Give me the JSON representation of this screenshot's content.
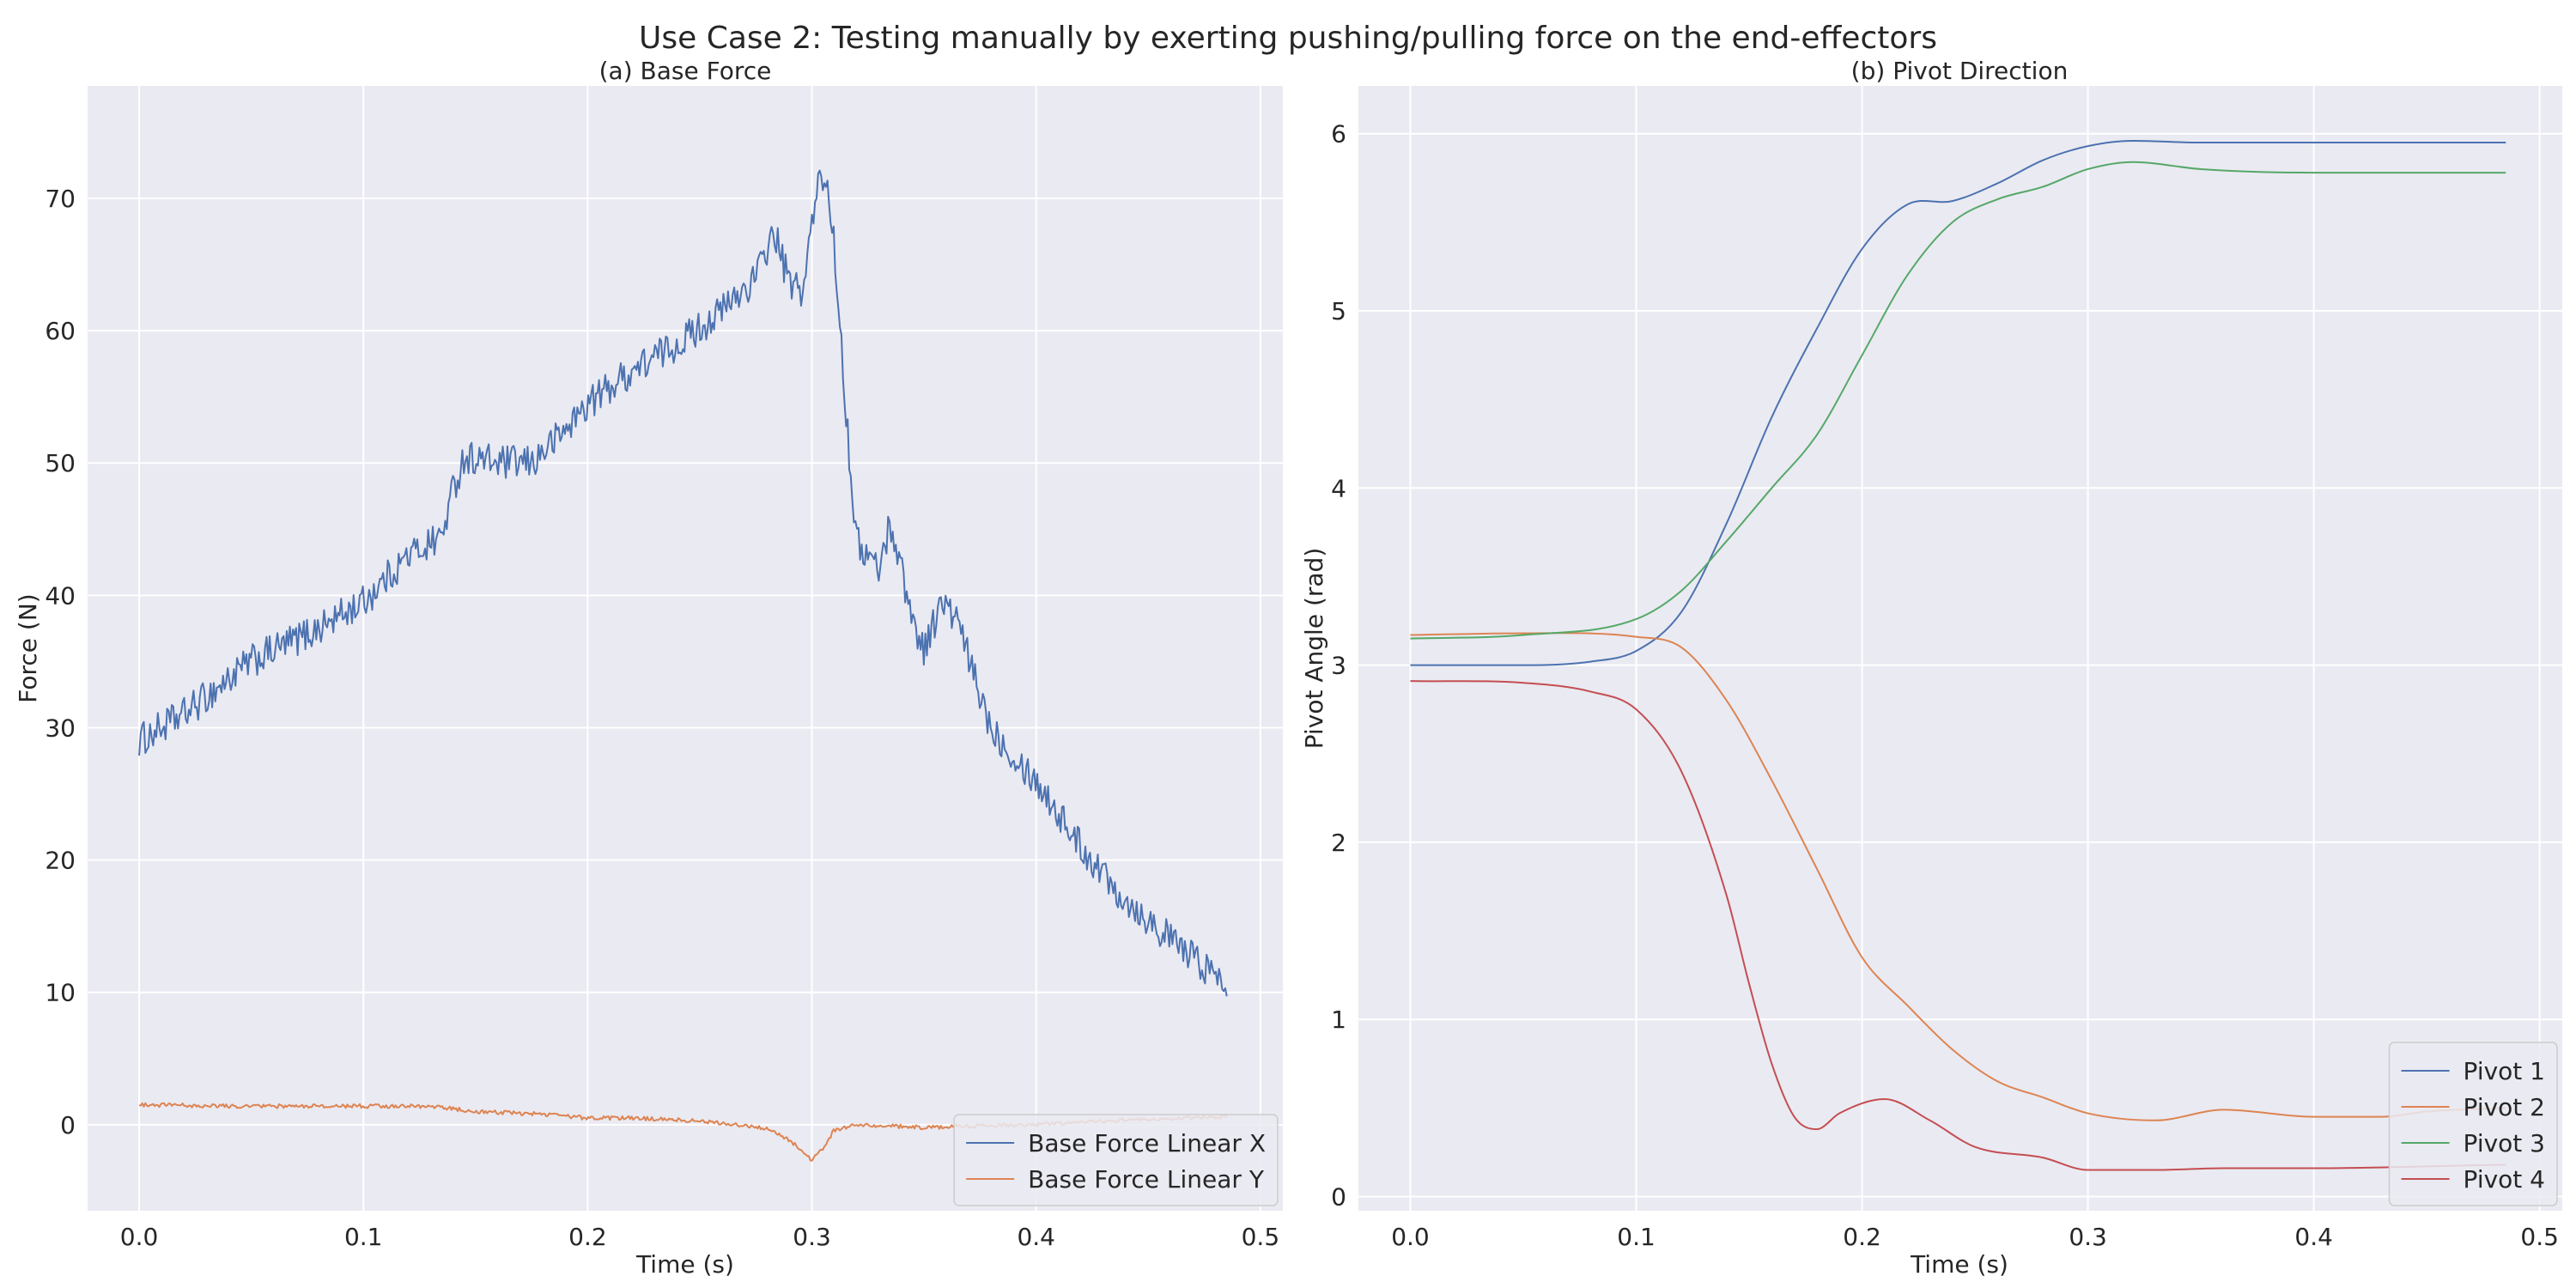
{
  "figure": {
    "suptitle": "Use Case 2: Testing manually by exerting pushing/pulling force on the end-effectors",
    "background": "#ffffff",
    "axes_facecolor": "#eaeaf2",
    "grid_color": "#ffffff"
  },
  "chart_data": [
    {
      "type": "line",
      "title": "(a) Base Force",
      "xlabel": "Time (s)",
      "ylabel": "Force (N)",
      "xlim": [
        -0.023,
        0.51
      ],
      "ylim": [
        -6.5,
        78.5
      ],
      "xticks": [
        0.0,
        0.1,
        0.2,
        0.3,
        0.4,
        0.5
      ],
      "xtick_labels": [
        "0.0",
        "0.1",
        "0.2",
        "0.3",
        "0.4",
        "0.5"
      ],
      "yticks": [
        0,
        10,
        20,
        30,
        40,
        50,
        60,
        70
      ],
      "ytick_labels": [
        "0",
        "10",
        "20",
        "30",
        "40",
        "50",
        "60",
        "70"
      ],
      "grid": true,
      "legend_position": "bottom-right",
      "series": [
        {
          "name": "Base Force Linear X",
          "color": "#4c72b0",
          "noise": 1.3,
          "x": [
            0.0,
            0.02,
            0.05,
            0.08,
            0.1,
            0.12,
            0.135,
            0.14,
            0.145,
            0.16,
            0.175,
            0.19,
            0.2,
            0.22,
            0.24,
            0.26,
            0.275,
            0.283,
            0.29,
            0.296,
            0.3,
            0.304,
            0.308,
            0.312,
            0.316,
            0.32,
            0.33,
            0.335,
            0.34,
            0.345,
            0.35,
            0.358,
            0.365,
            0.372,
            0.38,
            0.39,
            0.4,
            0.42,
            0.44,
            0.46,
            0.475,
            0.485
          ],
          "y": [
            29,
            31,
            35,
            37.5,
            39.5,
            43,
            44.5,
            48,
            50.5,
            50,
            50,
            52.5,
            54.5,
            57,
            59,
            61.5,
            64,
            67.5,
            63.5,
            63,
            68,
            72,
            70,
            62,
            52,
            44,
            42,
            45.5,
            42,
            38,
            36,
            39.5,
            38,
            34,
            30,
            28,
            26,
            21,
            17,
            14,
            12,
            10.5
          ]
        },
        {
          "name": "Base Force Linear Y",
          "color": "#dd8452",
          "noise": 0.15,
          "x": [
            0.0,
            0.05,
            0.1,
            0.13,
            0.15,
            0.18,
            0.2,
            0.22,
            0.25,
            0.28,
            0.29,
            0.295,
            0.3,
            0.305,
            0.31,
            0.32,
            0.35,
            0.4,
            0.45,
            0.485
          ],
          "y": [
            1.5,
            1.4,
            1.4,
            1.4,
            1.0,
            0.8,
            0.5,
            0.5,
            0.3,
            -0.3,
            -1.2,
            -1.8,
            -2.7,
            -1.8,
            -0.4,
            0.0,
            -0.2,
            0.0,
            0.4,
            0.6
          ]
        }
      ]
    },
    {
      "type": "line",
      "title": "(b) Pivot Direction",
      "xlabel": "Time (s)",
      "ylabel": "Pivot Angle (rad)",
      "xlim": [
        -0.023,
        0.51
      ],
      "ylim": [
        -0.08,
        6.27
      ],
      "xticks": [
        0.0,
        0.1,
        0.2,
        0.3,
        0.4,
        0.5
      ],
      "xtick_labels": [
        "0.0",
        "0.1",
        "0.2",
        "0.3",
        "0.4",
        "0.5"
      ],
      "yticks": [
        0,
        1,
        2,
        3,
        4,
        5,
        6
      ],
      "ytick_labels": [
        "0",
        "1",
        "2",
        "3",
        "4",
        "5",
        "6"
      ],
      "grid": true,
      "legend_position": "bottom-right",
      "series": [
        {
          "name": "Pivot 1",
          "color": "#4c72b0",
          "x": [
            0.0,
            0.05,
            0.08,
            0.1,
            0.12,
            0.14,
            0.16,
            0.18,
            0.2,
            0.22,
            0.24,
            0.26,
            0.28,
            0.3,
            0.32,
            0.35,
            0.4,
            0.45,
            0.485
          ],
          "y": [
            3.0,
            3.0,
            3.02,
            3.08,
            3.3,
            3.8,
            4.4,
            4.9,
            5.35,
            5.6,
            5.62,
            5.72,
            5.85,
            5.93,
            5.96,
            5.95,
            5.95,
            5.95,
            5.95
          ]
        },
        {
          "name": "Pivot 2",
          "color": "#dd8452",
          "x": [
            0.0,
            0.05,
            0.1,
            0.12,
            0.14,
            0.16,
            0.18,
            0.2,
            0.22,
            0.24,
            0.26,
            0.28,
            0.3,
            0.33,
            0.36,
            0.4,
            0.43,
            0.45,
            0.485
          ],
          "y": [
            3.17,
            3.18,
            3.16,
            3.1,
            2.8,
            2.35,
            1.85,
            1.35,
            1.08,
            0.83,
            0.65,
            0.56,
            0.47,
            0.43,
            0.49,
            0.45,
            0.45,
            0.48,
            0.5
          ]
        },
        {
          "name": "Pivot 3",
          "color": "#55a868",
          "x": [
            0.0,
            0.05,
            0.1,
            0.12,
            0.14,
            0.16,
            0.18,
            0.2,
            0.22,
            0.24,
            0.26,
            0.28,
            0.3,
            0.32,
            0.35,
            0.4,
            0.45,
            0.485
          ],
          "y": [
            3.15,
            3.17,
            3.26,
            3.42,
            3.7,
            4.0,
            4.3,
            4.75,
            5.2,
            5.5,
            5.63,
            5.7,
            5.8,
            5.84,
            5.8,
            5.78,
            5.78,
            5.78
          ]
        },
        {
          "name": "Pivot 4",
          "color": "#c44e52",
          "x": [
            0.0,
            0.05,
            0.08,
            0.1,
            0.12,
            0.14,
            0.15,
            0.16,
            0.17,
            0.18,
            0.19,
            0.21,
            0.23,
            0.25,
            0.28,
            0.3,
            0.33,
            0.36,
            0.4,
            0.45,
            0.485
          ],
          "y": [
            2.91,
            2.9,
            2.85,
            2.75,
            2.4,
            1.7,
            1.2,
            0.75,
            0.45,
            0.38,
            0.47,
            0.55,
            0.43,
            0.28,
            0.22,
            0.15,
            0.15,
            0.16,
            0.16,
            0.17,
            0.18
          ]
        }
      ]
    }
  ]
}
